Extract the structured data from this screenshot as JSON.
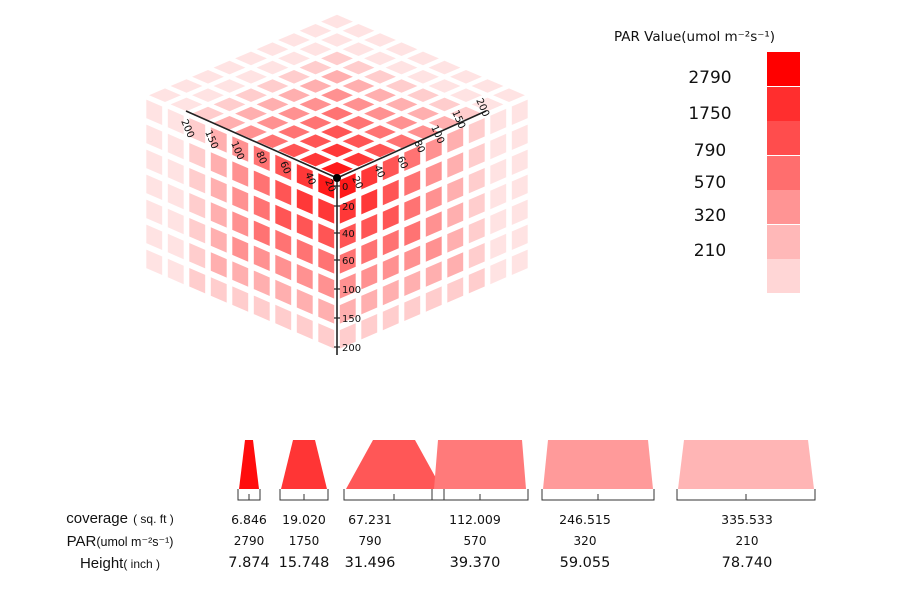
{
  "cube": {
    "vertical_ticks": [
      "0",
      "20",
      "40",
      "60",
      "100",
      "150",
      "200"
    ],
    "left_ticks": [
      "200",
      "150",
      "100",
      "80",
      "60",
      "40",
      "20"
    ],
    "right_ticks": [
      "20",
      "40",
      "60",
      "80",
      "100",
      "150",
      "200"
    ]
  },
  "legend": {
    "title": "PAR Value(umol m⁻²s⁻¹)",
    "labels": [
      "2790",
      "1750",
      "790",
      "570",
      "320",
      "210"
    ],
    "colors": [
      "#ff0000",
      "#ff2e2e",
      "#ff4d4d",
      "#ff6e6e",
      "#ff9494",
      "#ffb8b8",
      "#ffd6d6"
    ]
  },
  "cones": [
    {
      "color": "#ff0d0d"
    },
    {
      "color": "#ff3535"
    },
    {
      "color": "#ff5757"
    },
    {
      "color": "#ff7a7a"
    },
    {
      "color": "#ff9a9a"
    },
    {
      "color": "#ffb5b5"
    }
  ],
  "table": {
    "coverage_label": "coverage",
    "coverage_unit": "( sq. ft )",
    "par_label": "PAR",
    "par_unit": "(umol m⁻²s⁻¹)",
    "height_label": "Height",
    "height_unit": "( inch )",
    "coverage": [
      "6.846",
      "19.020",
      "67.231",
      "112.009",
      "246.515",
      "335.533"
    ],
    "par": [
      "2790",
      "1750",
      "790",
      "570",
      "320",
      "210"
    ],
    "height": [
      "7.874",
      "15.748",
      "31.496",
      "39.370",
      "59.055",
      "78.740"
    ]
  }
}
